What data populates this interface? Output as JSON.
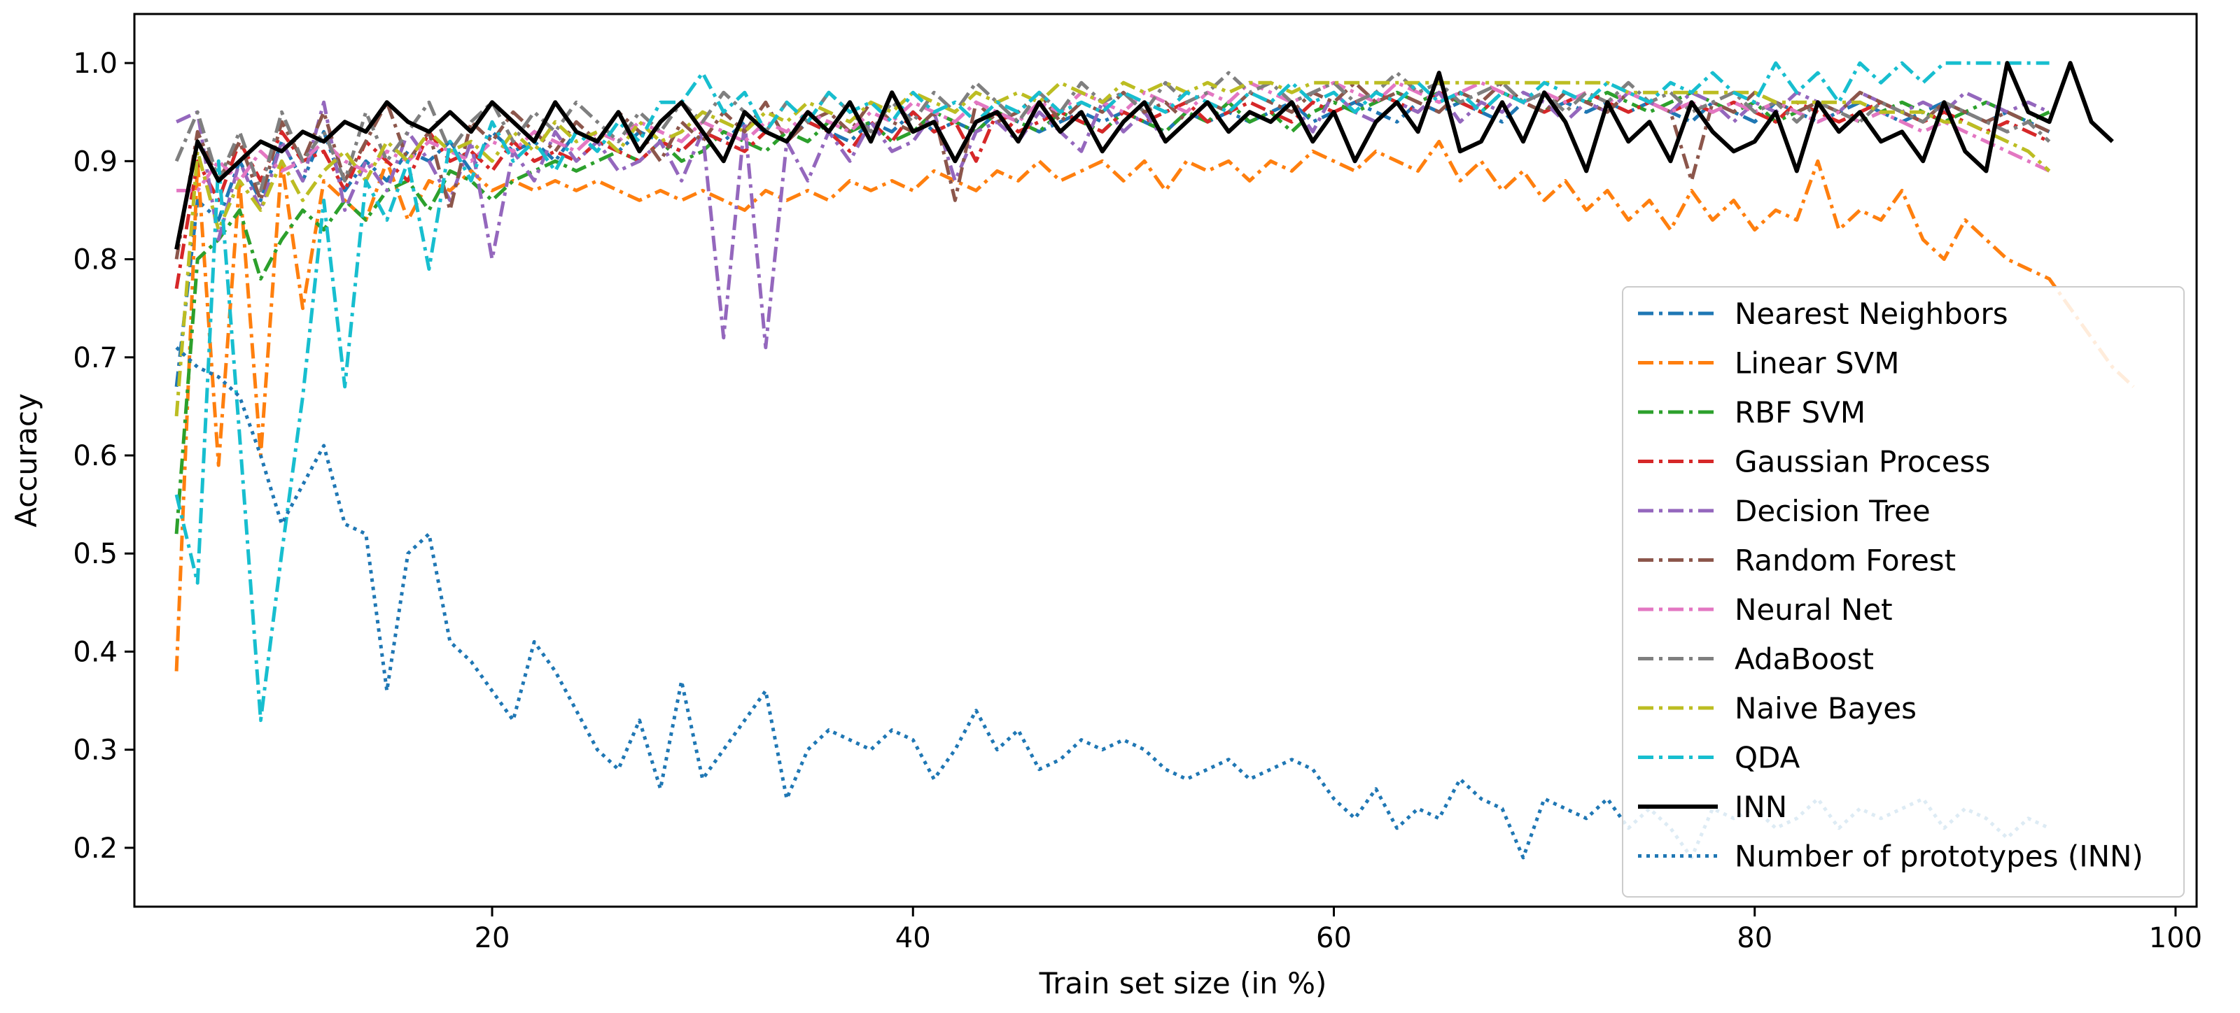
{
  "chart_data": {
    "type": "line",
    "title": "",
    "xlabel": "Train set size (in %)",
    "ylabel": "Accuracy",
    "xlim": [
      3,
      101
    ],
    "ylim": [
      0.14,
      1.05
    ],
    "xticks": [
      20,
      40,
      60,
      80,
      100
    ],
    "yticks": [
      0.2,
      0.3,
      0.4,
      0.5,
      0.6,
      0.7,
      0.8,
      0.9,
      1.0
    ],
    "xtick_labels": [
      "20",
      "40",
      "60",
      "80",
      "100"
    ],
    "ytick_labels": [
      "0.2",
      "0.3",
      "0.4",
      "0.5",
      "0.6",
      "0.7",
      "0.8",
      "0.9",
      "1.0"
    ],
    "grid": false,
    "legend_position": "lower-right",
    "x_start": 5,
    "x_step": 1,
    "series": [
      {
        "name": "Nearest Neighbors",
        "color": "#1f77b4",
        "style": "dashdot",
        "values": [
          0.67,
          0.86,
          0.84,
          0.9,
          0.86,
          0.92,
          0.88,
          0.93,
          0.87,
          0.9,
          0.88,
          0.91,
          0.9,
          0.92,
          0.89,
          0.93,
          0.91,
          0.92,
          0.9,
          0.93,
          0.92,
          0.91,
          0.93,
          0.92,
          0.91,
          0.93,
          0.92,
          0.94,
          0.93,
          0.92,
          0.94,
          0.93,
          0.92,
          0.94,
          0.93,
          0.95,
          0.93,
          0.94,
          0.93,
          0.95,
          0.94,
          0.93,
          0.94,
          0.95,
          0.94,
          0.95,
          0.94,
          0.93,
          0.95,
          0.94,
          0.95,
          0.94,
          0.95,
          0.96,
          0.94,
          0.95,
          0.96,
          0.95,
          0.94,
          0.96,
          0.95,
          0.96,
          0.95,
          0.94,
          0.96,
          0.95,
          0.96,
          0.95,
          0.96,
          0.95,
          0.96,
          0.95,
          0.94,
          0.96,
          0.95,
          0.94,
          0.96,
          0.95,
          0.94,
          0.95,
          0.96,
          0.95,
          0.94,
          0.95,
          0.96,
          0.95,
          0.94,
          0.95,
          0.94,
          0.93
        ]
      },
      {
        "name": "Linear SVM",
        "color": "#ff7f0e",
        "style": "dashdot",
        "values": [
          0.38,
          0.9,
          0.59,
          0.88,
          0.6,
          0.9,
          0.75,
          0.88,
          0.86,
          0.84,
          0.9,
          0.84,
          0.88,
          0.87,
          0.89,
          0.87,
          0.88,
          0.87,
          0.88,
          0.87,
          0.88,
          0.87,
          0.86,
          0.87,
          0.86,
          0.87,
          0.86,
          0.85,
          0.87,
          0.86,
          0.87,
          0.86,
          0.88,
          0.87,
          0.88,
          0.87,
          0.89,
          0.88,
          0.87,
          0.89,
          0.88,
          0.9,
          0.88,
          0.89,
          0.9,
          0.88,
          0.9,
          0.87,
          0.9,
          0.89,
          0.9,
          0.88,
          0.9,
          0.89,
          0.91,
          0.9,
          0.89,
          0.91,
          0.9,
          0.89,
          0.92,
          0.88,
          0.9,
          0.87,
          0.89,
          0.86,
          0.88,
          0.85,
          0.87,
          0.84,
          0.86,
          0.83,
          0.87,
          0.84,
          0.86,
          0.83,
          0.85,
          0.84,
          0.9,
          0.83,
          0.85,
          0.84,
          0.87,
          0.82,
          0.8,
          0.84,
          0.82,
          0.8,
          0.79,
          0.78,
          0.75,
          0.72,
          0.69,
          0.67
        ]
      },
      {
        "name": "RBF SVM",
        "color": "#2ca02c",
        "style": "dashdot",
        "values": [
          0.52,
          0.8,
          0.82,
          0.85,
          0.78,
          0.82,
          0.85,
          0.83,
          0.86,
          0.84,
          0.87,
          0.88,
          0.85,
          0.89,
          0.88,
          0.86,
          0.88,
          0.89,
          0.9,
          0.89,
          0.9,
          0.91,
          0.9,
          0.92,
          0.9,
          0.91,
          0.93,
          0.92,
          0.91,
          0.93,
          0.92,
          0.94,
          0.93,
          0.94,
          0.92,
          0.93,
          0.95,
          0.94,
          0.93,
          0.95,
          0.94,
          0.93,
          0.95,
          0.94,
          0.93,
          0.95,
          0.94,
          0.93,
          0.95,
          0.94,
          0.96,
          0.94,
          0.95,
          0.93,
          0.95,
          0.96,
          0.95,
          0.96,
          0.97,
          0.96,
          0.97,
          0.96,
          0.95,
          0.97,
          0.96,
          0.95,
          0.97,
          0.96,
          0.97,
          0.96,
          0.95,
          0.96,
          0.97,
          0.96,
          0.95,
          0.96,
          0.94,
          0.95,
          0.96,
          0.95,
          0.94,
          0.95,
          0.96,
          0.95,
          0.94,
          0.95,
          0.96,
          0.95,
          0.94,
          0.95
        ]
      },
      {
        "name": "Gaussian Process",
        "color": "#d62728",
        "style": "dashdot",
        "values": [
          0.77,
          0.9,
          0.86,
          0.92,
          0.88,
          0.93,
          0.9,
          0.91,
          0.87,
          0.92,
          0.9,
          0.88,
          0.93,
          0.9,
          0.91,
          0.89,
          0.92,
          0.9,
          0.91,
          0.9,
          0.92,
          0.91,
          0.9,
          0.92,
          0.91,
          0.93,
          0.92,
          0.91,
          0.93,
          0.92,
          0.94,
          0.93,
          0.91,
          0.94,
          0.92,
          0.95,
          0.93,
          0.94,
          0.9,
          0.95,
          0.93,
          0.94,
          0.95,
          0.94,
          0.93,
          0.95,
          0.94,
          0.95,
          0.96,
          0.94,
          0.95,
          0.96,
          0.95,
          0.94,
          0.96,
          0.95,
          0.96,
          0.97,
          0.96,
          0.95,
          0.97,
          0.96,
          0.95,
          0.97,
          0.96,
          0.95,
          0.96,
          0.97,
          0.96,
          0.95,
          0.96,
          0.95,
          0.96,
          0.95,
          0.96,
          0.95,
          0.94,
          0.96,
          0.95,
          0.94,
          0.95,
          0.96,
          0.95,
          0.94,
          0.95,
          0.94,
          0.93,
          0.94,
          0.93,
          0.92
        ]
      },
      {
        "name": "Decision Tree",
        "color": "#9467bd",
        "style": "dashdot",
        "values": [
          0.94,
          0.95,
          0.82,
          0.9,
          0.85,
          0.92,
          0.88,
          0.96,
          0.85,
          0.9,
          0.87,
          0.93,
          0.9,
          0.86,
          0.92,
          0.8,
          0.91,
          0.88,
          0.93,
          0.9,
          0.92,
          0.89,
          0.9,
          0.92,
          0.88,
          0.93,
          0.72,
          0.94,
          0.71,
          0.92,
          0.88,
          0.93,
          0.9,
          0.94,
          0.91,
          0.92,
          0.95,
          0.88,
          0.93,
          0.94,
          0.92,
          0.95,
          0.93,
          0.91,
          0.96,
          0.93,
          0.95,
          0.92,
          0.94,
          0.96,
          0.93,
          0.95,
          0.94,
          0.96,
          0.93,
          0.97,
          0.95,
          0.94,
          0.96,
          0.95,
          0.97,
          0.94,
          0.96,
          0.95,
          0.97,
          0.96,
          0.94,
          0.96,
          0.95,
          0.97,
          0.96,
          0.95,
          0.97,
          0.96,
          0.94,
          0.96,
          0.95,
          0.97,
          0.96,
          0.95,
          0.97,
          0.96,
          0.95,
          0.96,
          0.95,
          0.97,
          0.96,
          0.95,
          0.96,
          0.95
        ]
      },
      {
        "name": "Random Forest",
        "color": "#8c564b",
        "style": "dashdot",
        "values": [
          0.8,
          0.93,
          0.88,
          0.92,
          0.86,
          0.94,
          0.9,
          0.95,
          0.88,
          0.92,
          0.96,
          0.9,
          0.93,
          0.85,
          0.94,
          0.92,
          0.95,
          0.93,
          0.91,
          0.94,
          0.92,
          0.95,
          0.93,
          0.9,
          0.94,
          0.92,
          0.95,
          0.93,
          0.96,
          0.92,
          0.94,
          0.95,
          0.93,
          0.96,
          0.94,
          0.93,
          0.95,
          0.86,
          0.96,
          0.94,
          0.95,
          0.97,
          0.94,
          0.96,
          0.95,
          0.97,
          0.95,
          0.96,
          0.94,
          0.96,
          0.95,
          0.97,
          0.96,
          0.95,
          0.97,
          0.96,
          0.98,
          0.96,
          0.97,
          0.96,
          0.95,
          0.97,
          0.96,
          0.98,
          0.96,
          0.95,
          0.97,
          0.96,
          0.95,
          0.97,
          0.96,
          0.95,
          0.88,
          0.96,
          0.95,
          0.97,
          0.96,
          0.95,
          0.96,
          0.95,
          0.97,
          0.96,
          0.95,
          0.94,
          0.96,
          0.95,
          0.94,
          0.95,
          0.94,
          0.93
        ]
      },
      {
        "name": "Neural Net",
        "color": "#e377c2",
        "style": "dashdot",
        "values": [
          0.87,
          0.87,
          0.9,
          0.88,
          0.91,
          0.89,
          0.9,
          0.92,
          0.9,
          0.89,
          0.91,
          0.9,
          0.92,
          0.91,
          0.9,
          0.92,
          0.91,
          0.93,
          0.92,
          0.91,
          0.93,
          0.92,
          0.94,
          0.93,
          0.92,
          0.94,
          0.93,
          0.92,
          0.94,
          0.93,
          0.95,
          0.94,
          0.93,
          0.95,
          0.94,
          0.96,
          0.95,
          0.94,
          0.96,
          0.95,
          0.94,
          0.96,
          0.95,
          0.97,
          0.96,
          0.95,
          0.97,
          0.96,
          0.95,
          0.97,
          0.96,
          0.98,
          0.97,
          0.96,
          0.97,
          0.98,
          0.97,
          0.96,
          0.98,
          0.97,
          0.96,
          0.97,
          0.98,
          0.97,
          0.96,
          0.97,
          0.96,
          0.97,
          0.96,
          0.97,
          0.96,
          0.95,
          0.96,
          0.95,
          0.96,
          0.95,
          0.96,
          0.95,
          0.94,
          0.95,
          0.94,
          0.95,
          0.94,
          0.93,
          0.94,
          0.93,
          0.92,
          0.91,
          0.9,
          0.89
        ]
      },
      {
        "name": "AdaBoost",
        "color": "#7f7f7f",
        "style": "dashdot",
        "values": [
          0.9,
          0.95,
          0.88,
          0.93,
          0.87,
          0.95,
          0.9,
          0.93,
          0.88,
          0.95,
          0.9,
          0.93,
          0.96,
          0.91,
          0.94,
          0.96,
          0.92,
          0.95,
          0.93,
          0.96,
          0.94,
          0.92,
          0.95,
          0.93,
          0.96,
          0.94,
          0.97,
          0.95,
          0.93,
          0.96,
          0.94,
          0.97,
          0.95,
          0.93,
          0.96,
          0.94,
          0.97,
          0.95,
          0.98,
          0.96,
          0.94,
          0.97,
          0.95,
          0.98,
          0.96,
          0.97,
          0.95,
          0.98,
          0.96,
          0.97,
          0.99,
          0.97,
          0.98,
          0.96,
          0.97,
          0.98,
          0.96,
          0.97,
          0.99,
          0.97,
          0.98,
          0.96,
          0.97,
          0.98,
          0.96,
          0.97,
          0.95,
          0.97,
          0.96,
          0.98,
          0.96,
          0.97,
          0.95,
          0.96,
          0.97,
          0.95,
          0.96,
          0.94,
          0.96,
          0.95,
          0.94,
          0.96,
          0.95,
          0.94,
          0.96,
          0.95,
          0.94,
          0.93,
          0.94,
          0.92
        ]
      },
      {
        "name": "Naive Bayes",
        "color": "#bcbd22",
        "style": "dashdot",
        "values": [
          0.64,
          0.91,
          0.83,
          0.88,
          0.85,
          0.9,
          0.86,
          0.89,
          0.91,
          0.88,
          0.92,
          0.9,
          0.93,
          0.91,
          0.92,
          0.9,
          0.93,
          0.91,
          0.94,
          0.92,
          0.93,
          0.91,
          0.94,
          0.92,
          0.93,
          0.95,
          0.94,
          0.93,
          0.95,
          0.94,
          0.96,
          0.95,
          0.94,
          0.96,
          0.95,
          0.97,
          0.96,
          0.95,
          0.97,
          0.96,
          0.97,
          0.96,
          0.98,
          0.97,
          0.96,
          0.98,
          0.97,
          0.98,
          0.97,
          0.98,
          0.97,
          0.98,
          0.98,
          0.97,
          0.98,
          0.98,
          0.98,
          0.98,
          0.98,
          0.98,
          0.98,
          0.98,
          0.98,
          0.98,
          0.98,
          0.98,
          0.98,
          0.98,
          0.98,
          0.97,
          0.97,
          0.97,
          0.97,
          0.97,
          0.97,
          0.97,
          0.96,
          0.96,
          0.96,
          0.96,
          0.96,
          0.95,
          0.95,
          0.95,
          0.94,
          0.94,
          0.93,
          0.92,
          0.91,
          0.89
        ]
      },
      {
        "name": "QDA",
        "color": "#17becf",
        "style": "dashdot",
        "values": [
          0.56,
          0.47,
          0.9,
          0.62,
          0.33,
          0.5,
          0.66,
          0.86,
          0.67,
          0.88,
          0.84,
          0.9,
          0.79,
          0.92,
          0.88,
          0.94,
          0.9,
          0.92,
          0.89,
          0.93,
          0.91,
          0.94,
          0.92,
          0.96,
          0.96,
          0.99,
          0.95,
          0.97,
          0.93,
          0.96,
          0.94,
          0.97,
          0.95,
          0.96,
          0.94,
          0.97,
          0.95,
          0.96,
          0.94,
          0.96,
          0.95,
          0.97,
          0.95,
          0.96,
          0.95,
          0.97,
          0.96,
          0.95,
          0.97,
          0.96,
          0.95,
          0.97,
          0.96,
          0.98,
          0.96,
          0.97,
          0.95,
          0.97,
          0.96,
          0.98,
          0.96,
          0.97,
          0.95,
          0.97,
          0.96,
          0.98,
          0.97,
          0.96,
          0.98,
          0.97,
          0.96,
          0.98,
          0.97,
          0.99,
          0.97,
          0.96,
          1.0,
          0.97,
          0.99,
          0.96,
          1.0,
          0.98,
          1.0,
          0.98,
          1.0,
          1.0,
          1.0,
          1.0,
          1.0,
          1.0
        ]
      },
      {
        "name": "INN",
        "color": "#000000",
        "style": "solid",
        "values": [
          0.81,
          0.92,
          0.88,
          0.9,
          0.92,
          0.91,
          0.93,
          0.92,
          0.94,
          0.93,
          0.96,
          0.94,
          0.93,
          0.95,
          0.93,
          0.96,
          0.94,
          0.92,
          0.96,
          0.93,
          0.92,
          0.95,
          0.91,
          0.94,
          0.96,
          0.93,
          0.9,
          0.95,
          0.93,
          0.92,
          0.95,
          0.93,
          0.96,
          0.92,
          0.97,
          0.93,
          0.94,
          0.9,
          0.94,
          0.95,
          0.92,
          0.96,
          0.93,
          0.95,
          0.91,
          0.94,
          0.96,
          0.92,
          0.94,
          0.96,
          0.93,
          0.95,
          0.94,
          0.96,
          0.92,
          0.95,
          0.9,
          0.94,
          0.96,
          0.93,
          0.99,
          0.91,
          0.92,
          0.96,
          0.92,
          0.97,
          0.94,
          0.89,
          0.96,
          0.92,
          0.94,
          0.9,
          0.96,
          0.93,
          0.91,
          0.92,
          0.95,
          0.89,
          0.96,
          0.93,
          0.95,
          0.92,
          0.93,
          0.9,
          0.96,
          0.91,
          0.89,
          1.0,
          0.95,
          0.94,
          1.0,
          0.94,
          0.92
        ]
      },
      {
        "name": "Number of prototypes (INN)",
        "color": "#1f77b4",
        "style": "dotted",
        "values": [
          0.71,
          0.69,
          0.68,
          0.66,
          0.6,
          0.53,
          0.57,
          0.61,
          0.53,
          0.52,
          0.36,
          0.5,
          0.52,
          0.41,
          0.39,
          0.36,
          0.33,
          0.41,
          0.38,
          0.34,
          0.3,
          0.28,
          0.33,
          0.26,
          0.37,
          0.27,
          0.3,
          0.33,
          0.36,
          0.25,
          0.3,
          0.32,
          0.31,
          0.3,
          0.32,
          0.31,
          0.27,
          0.3,
          0.34,
          0.3,
          0.32,
          0.28,
          0.29,
          0.31,
          0.3,
          0.31,
          0.3,
          0.28,
          0.27,
          0.28,
          0.29,
          0.27,
          0.28,
          0.29,
          0.28,
          0.25,
          0.23,
          0.26,
          0.22,
          0.24,
          0.23,
          0.27,
          0.25,
          0.24,
          0.19,
          0.25,
          0.24,
          0.23,
          0.25,
          0.22,
          0.24,
          0.22,
          0.19,
          0.24,
          0.23,
          0.24,
          0.22,
          0.23,
          0.25,
          0.22,
          0.24,
          0.23,
          0.24,
          0.25,
          0.22,
          0.24,
          0.23,
          0.21,
          0.23,
          0.22
        ]
      }
    ]
  }
}
